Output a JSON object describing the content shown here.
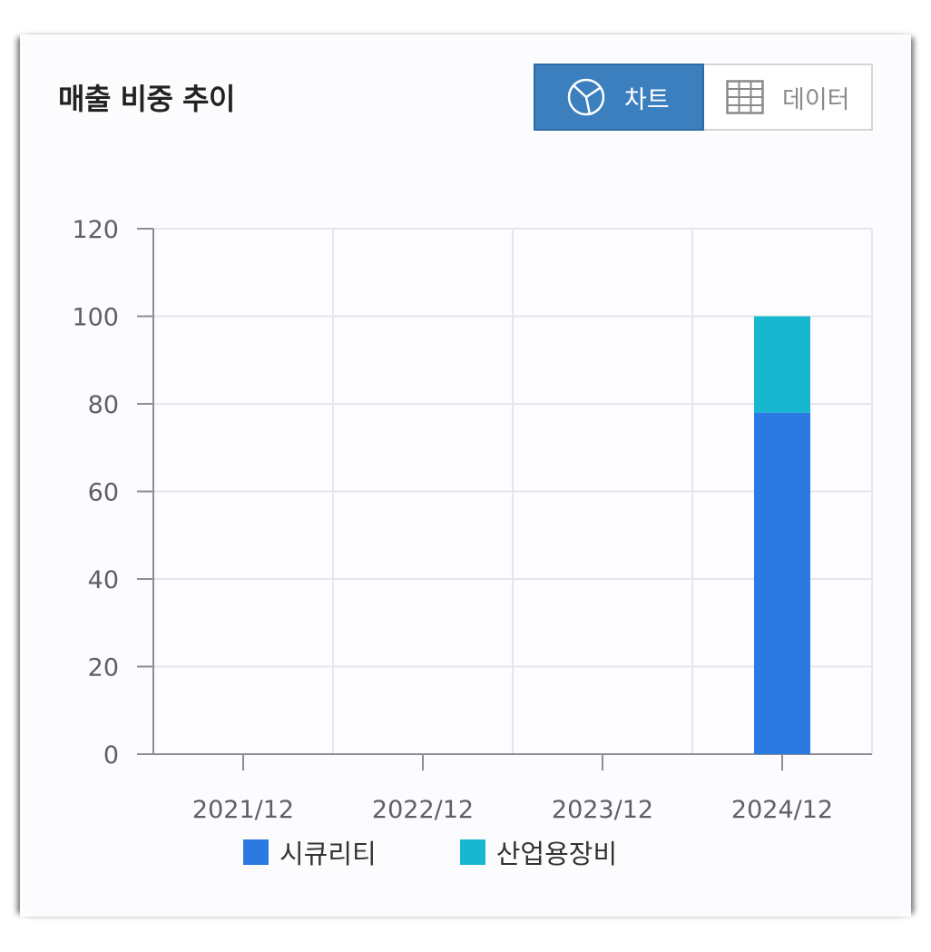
{
  "header": {
    "title": "매출 비중 추이",
    "toggle": {
      "chart_label": "차트",
      "data_label": "데이터",
      "active": "chart"
    }
  },
  "colors": {
    "accent": "#3c7fbf",
    "grid": "#e6e6ea",
    "axis": "#8d8d93",
    "tick_text": "#5f5f66"
  },
  "chart_data": {
    "type": "bar",
    "stacked": true,
    "categories": [
      "2021/12",
      "2022/12",
      "2023/12",
      "2024/12"
    ],
    "series": [
      {
        "name": "시큐리티",
        "color": "#2a7ae2",
        "values": [
          0,
          0,
          0,
          78
        ]
      },
      {
        "name": "산업용장비",
        "color": "#17b8cf",
        "values": [
          0,
          0,
          0,
          22
        ]
      }
    ],
    "ylim": [
      0,
      120
    ],
    "yticks": [
      0,
      20,
      40,
      60,
      80,
      100,
      120
    ],
    "grid": true,
    "legend": "bottom"
  }
}
